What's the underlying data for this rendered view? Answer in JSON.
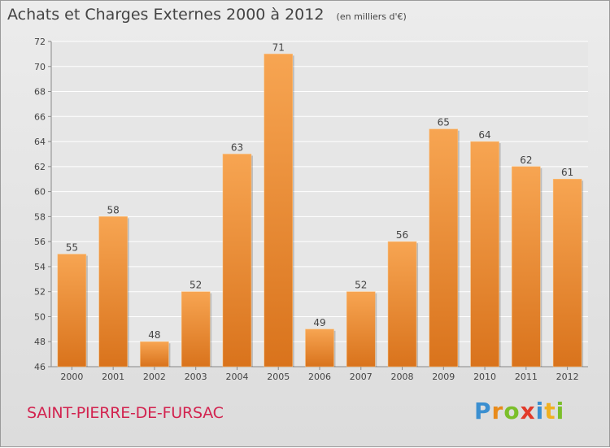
{
  "chart_data": {
    "type": "bar",
    "title": "Achats et Charges Externes 2000 à 2012",
    "subtitle": "(en milliers d'€)",
    "categories": [
      "2000",
      "2001",
      "2002",
      "2003",
      "2004",
      "2005",
      "2006",
      "2007",
      "2008",
      "2009",
      "2010",
      "2011",
      "2012"
    ],
    "values": [
      55,
      58,
      48,
      52,
      63,
      71,
      49,
      52,
      56,
      65,
      64,
      62,
      61
    ],
    "ylim": [
      46,
      72
    ],
    "yticks": [
      46,
      48,
      50,
      52,
      54,
      56,
      58,
      60,
      62,
      64,
      66,
      68,
      70,
      72
    ],
    "grid": true,
    "xlabel": "",
    "ylabel": "",
    "colors": {
      "bar_top": "#f7a552",
      "bar_bottom": "#d9731c",
      "grid": "#ffffff",
      "axis": "#888888"
    }
  },
  "footer": {
    "commune": "SAINT-PIERRE-DE-FURSAC",
    "logo_letters": [
      "P",
      "r",
      "o",
      "x",
      "i",
      "t",
      "i"
    ],
    "logo_colors": [
      "#3b8fd0",
      "#e88a1a",
      "#7bbf2a",
      "#e23a2a",
      "#3b8fd0",
      "#f0b020",
      "#7bbf2a"
    ]
  }
}
